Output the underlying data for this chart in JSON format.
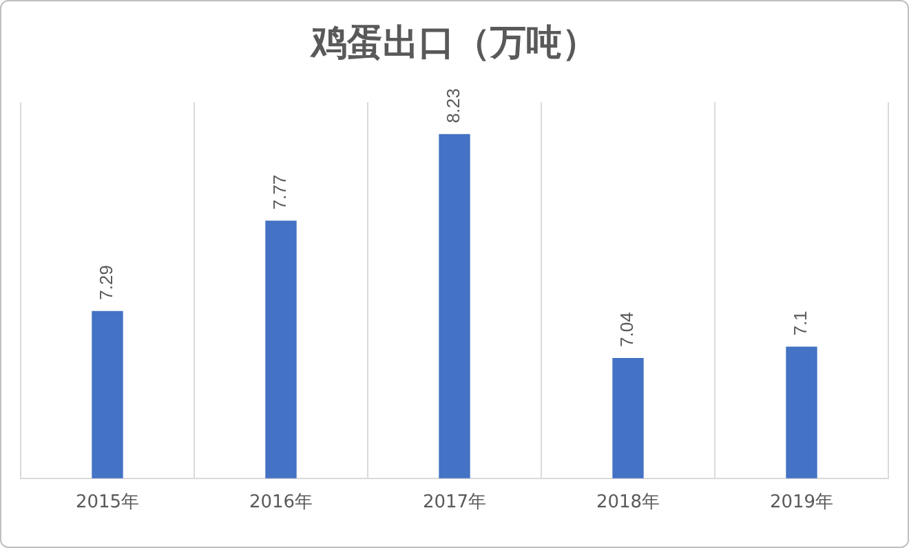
{
  "chart_data": {
    "type": "bar",
    "title": "鸡蛋出口（万吨）",
    "categories": [
      "2015年",
      "2016年",
      "2017年",
      "2018年",
      "2019年"
    ],
    "values": [
      7.29,
      7.77,
      8.23,
      7.04,
      7.1
    ],
    "color": "#4472c4",
    "ylim": [
      6.4,
      8.4
    ],
    "tick_labels": "x",
    "grid": "x",
    "data_labels": true,
    "legend": false
  }
}
